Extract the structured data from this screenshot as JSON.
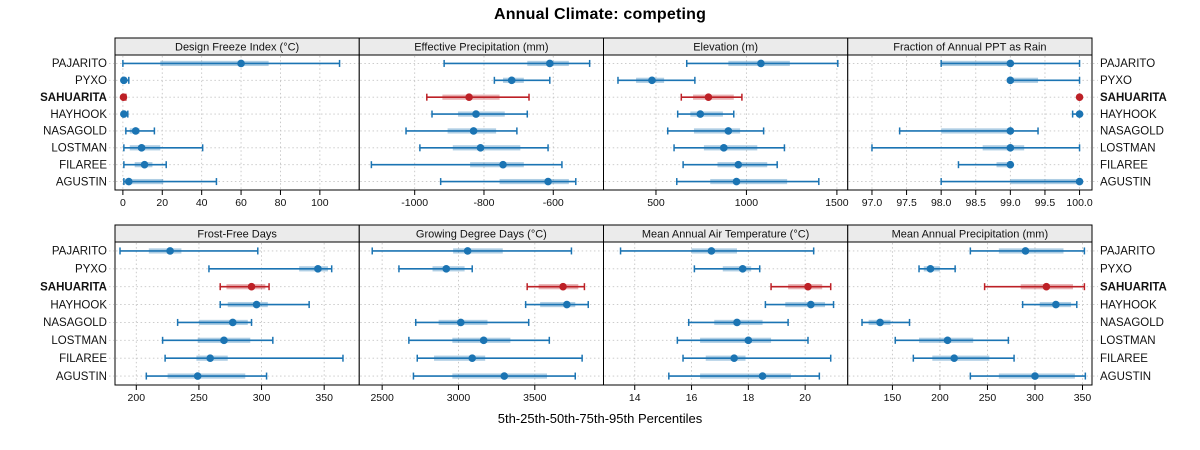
{
  "title": "Annual Climate: competing",
  "caption": "5th-25th-50th-75th-95th Percentiles",
  "sites": [
    "PAJARITO",
    "PYXO",
    "SAHUARITA",
    "HAYHOOK",
    "NASAGOLD",
    "LOSTMAN",
    "FILAREE",
    "AGUSTIN"
  ],
  "highlight_site": "SAHUARITA",
  "percentile_keys": [
    "p5",
    "p25",
    "p50",
    "p75",
    "p95"
  ],
  "colors": {
    "site_blue": "#1b74b3",
    "highlight_red": "#bd2026",
    "strip_bg": "#ebebeb",
    "panel_border": "#000000",
    "grid": "#c5c5c5",
    "background": "#ffffff"
  },
  "layout_hints": {
    "grid_style": "dotted",
    "rows": 2,
    "cols": 4,
    "marks": "whisker p5-p95 with end caps, translucent band p25-p75, solid dot p50"
  },
  "chart_data": [
    {
      "type": "scatter",
      "mark": "percentile-interval",
      "title": "Design Freeze Index (°C)",
      "xlim": [
        -4,
        120
      ],
      "ticks": [
        0,
        20,
        40,
        60,
        80,
        100
      ],
      "tick_labels": [
        "0",
        "20",
        "40",
        "60",
        "80",
        "100"
      ],
      "series": [
        {
          "site": "PAJARITO",
          "values": [
            0,
            19,
            60,
            74,
            110
          ]
        },
        {
          "site": "PYXO",
          "values": [
            0,
            0,
            0.5,
            1.5,
            3
          ]
        },
        {
          "site": "SAHUARITA",
          "values": [
            0,
            0,
            0.3,
            0.8,
            1.5
          ]
        },
        {
          "site": "HAYHOOK",
          "values": [
            0,
            0,
            0.5,
            1.5,
            2.5
          ]
        },
        {
          "site": "NASAGOLD",
          "values": [
            1.5,
            3.5,
            6.5,
            8.5,
            16
          ]
        },
        {
          "site": "LOSTMAN",
          "values": [
            0.5,
            3.5,
            9.5,
            19,
            40.5
          ]
        },
        {
          "site": "FILAREE",
          "values": [
            0.5,
            6,
            11,
            15,
            22
          ]
        },
        {
          "site": "AGUSTIN",
          "values": [
            0.5,
            1,
            3,
            20.5,
            47.5
          ]
        }
      ]
    },
    {
      "type": "scatter",
      "mark": "percentile-interval",
      "title": "Effective Precipitation (mm)",
      "xlim": [
        -1160,
        -455
      ],
      "ticks": [
        -1000,
        -800,
        -600
      ],
      "tick_labels": [
        "-1000",
        "-800",
        "-600"
      ],
      "series": [
        {
          "site": "PAJARITO",
          "values": [
            -915,
            -675,
            -610,
            -555,
            -495
          ]
        },
        {
          "site": "PYXO",
          "values": [
            -770,
            -745,
            -720,
            -685,
            -610
          ]
        },
        {
          "site": "SAHUARITA",
          "values": [
            -965,
            -920,
            -843,
            -755,
            -670
          ]
        },
        {
          "site": "HAYHOOK",
          "values": [
            -950,
            -875,
            -823,
            -740,
            -675
          ]
        },
        {
          "site": "NASAGOLD",
          "values": [
            -1025,
            -905,
            -830,
            -765,
            -705
          ]
        },
        {
          "site": "LOSTMAN",
          "values": [
            -985,
            -890,
            -810,
            -695,
            -615
          ]
        },
        {
          "site": "FILAREE",
          "values": [
            -1125,
            -840,
            -745,
            -685,
            -575
          ]
        },
        {
          "site": "AGUSTIN",
          "values": [
            -925,
            -755,
            -615,
            -555,
            -535
          ]
        }
      ]
    },
    {
      "type": "scatter",
      "mark": "percentile-interval",
      "title": "Elevation (m)",
      "xlim": [
        210,
        1560
      ],
      "ticks": [
        500,
        1000,
        1500
      ],
      "tick_labels": [
        "500",
        "1000",
        "1500"
      ],
      "series": [
        {
          "site": "PAJARITO",
          "values": [
            670,
            900,
            1080,
            1240,
            1505
          ]
        },
        {
          "site": "PYXO",
          "values": [
            290,
            390,
            478,
            545,
            715
          ]
        },
        {
          "site": "SAHUARITA",
          "values": [
            640,
            705,
            790,
            930,
            975
          ]
        },
        {
          "site": "HAYHOOK",
          "values": [
            620,
            690,
            745,
            870,
            930
          ]
        },
        {
          "site": "NASAGOLD",
          "values": [
            565,
            710,
            900,
            965,
            1095
          ]
        },
        {
          "site": "LOSTMAN",
          "values": [
            600,
            765,
            875,
            1060,
            1210
          ]
        },
        {
          "site": "FILAREE",
          "values": [
            650,
            840,
            955,
            1115,
            1170
          ]
        },
        {
          "site": "AGUSTIN",
          "values": [
            615,
            800,
            945,
            1225,
            1400
          ]
        }
      ]
    },
    {
      "type": "scatter",
      "mark": "percentile-interval",
      "title": "Fraction of Annual PPT as Rain",
      "xlim": [
        96.65,
        100.18
      ],
      "ticks": [
        97.0,
        97.5,
        98.0,
        98.5,
        99.0,
        99.5,
        100.0
      ],
      "tick_labels": [
        "97.0",
        "97.5",
        "98.0",
        "98.5",
        "99.0",
        "99.5",
        "100.0"
      ],
      "series": [
        {
          "site": "PAJARITO",
          "values": [
            98.0,
            98.0,
            99.0,
            99.0,
            100.0
          ]
        },
        {
          "site": "PYXO",
          "values": [
            99.0,
            99.0,
            99.0,
            99.4,
            100.0
          ]
        },
        {
          "site": "SAHUARITA",
          "values": [
            100,
            100,
            100,
            100,
            100
          ]
        },
        {
          "site": "HAYHOOK",
          "values": [
            99.9,
            100,
            100,
            100,
            100
          ]
        },
        {
          "site": "NASAGOLD",
          "values": [
            97.4,
            98.0,
            99.0,
            99.0,
            99.4
          ]
        },
        {
          "site": "LOSTMAN",
          "values": [
            97.0,
            98.6,
            99.0,
            99.2,
            100.0
          ]
        },
        {
          "site": "FILAREE",
          "values": [
            98.25,
            98.8,
            99.0,
            99.0,
            99.0
          ]
        },
        {
          "site": "AGUSTIN",
          "values": [
            98.0,
            99.0,
            100.0,
            100.0,
            100.0
          ]
        }
      ]
    },
    {
      "type": "scatter",
      "mark": "percentile-interval",
      "title": "Frost-Free Days",
      "xlim": [
        183,
        378
      ],
      "ticks": [
        200,
        250,
        300,
        350
      ],
      "tick_labels": [
        "200",
        "250",
        "300",
        "350"
      ],
      "series": [
        {
          "site": "PAJARITO",
          "values": [
            187,
            210,
            227,
            236,
            297
          ]
        },
        {
          "site": "PYXO",
          "values": [
            258,
            330,
            345,
            353,
            356
          ]
        },
        {
          "site": "SAHUARITA",
          "values": [
            267,
            272,
            292,
            303,
            306
          ]
        },
        {
          "site": "HAYHOOK",
          "values": [
            267,
            273,
            296,
            305,
            338
          ]
        },
        {
          "site": "NASAGOLD",
          "values": [
            233,
            250,
            277,
            289,
            292
          ]
        },
        {
          "site": "LOSTMAN",
          "values": [
            221,
            249,
            270,
            291,
            309
          ]
        },
        {
          "site": "FILAREE",
          "values": [
            223,
            248,
            259,
            273,
            365
          ]
        },
        {
          "site": "AGUSTIN",
          "values": [
            208,
            225,
            249,
            287,
            304
          ]
        }
      ]
    },
    {
      "type": "scatter",
      "mark": "percentile-interval",
      "title": "Growing Degree Days (°C)",
      "xlim": [
        2350,
        3950
      ],
      "ticks": [
        2500,
        3000,
        3500
      ],
      "tick_labels": [
        "2500",
        "3000",
        "3500"
      ],
      "series": [
        {
          "site": "PAJARITO",
          "values": [
            2435,
            2965,
            3060,
            3290,
            3740
          ]
        },
        {
          "site": "PYXO",
          "values": [
            2610,
            2830,
            2920,
            3040,
            3090
          ]
        },
        {
          "site": "SAHUARITA",
          "values": [
            3450,
            3525,
            3685,
            3785,
            3825
          ]
        },
        {
          "site": "HAYHOOK",
          "values": [
            3440,
            3535,
            3710,
            3765,
            3850
          ]
        },
        {
          "site": "NASAGOLD",
          "values": [
            2720,
            2870,
            3015,
            3190,
            3460
          ]
        },
        {
          "site": "LOSTMAN",
          "values": [
            2675,
            2960,
            3165,
            3340,
            3595
          ]
        },
        {
          "site": "FILAREE",
          "values": [
            2730,
            2840,
            3090,
            3175,
            3810
          ]
        },
        {
          "site": "AGUSTIN",
          "values": [
            2705,
            2960,
            3300,
            3580,
            3765
          ]
        }
      ]
    },
    {
      "type": "scatter",
      "mark": "percentile-interval",
      "title": "Mean Annual Air Temperature (°C)",
      "xlim": [
        12.9,
        21.5
      ],
      "ticks": [
        14,
        16,
        18,
        20
      ],
      "tick_labels": [
        "14",
        "16",
        "18",
        "20"
      ],
      "series": [
        {
          "site": "PAJARITO",
          "values": [
            13.5,
            16.0,
            16.7,
            17.6,
            20.3
          ]
        },
        {
          "site": "PYXO",
          "values": [
            16.1,
            17.1,
            17.8,
            18.1,
            18.4
          ]
        },
        {
          "site": "SAHUARITA",
          "values": [
            18.8,
            19.4,
            20.1,
            20.6,
            20.9
          ]
        },
        {
          "site": "HAYHOOK",
          "values": [
            18.6,
            19.3,
            20.2,
            20.7,
            21.0
          ]
        },
        {
          "site": "NASAGOLD",
          "values": [
            15.9,
            16.8,
            17.6,
            18.5,
            19.4
          ]
        },
        {
          "site": "LOSTMAN",
          "values": [
            15.5,
            16.3,
            18.0,
            18.8,
            20.1
          ]
        },
        {
          "site": "FILAREE",
          "values": [
            15.7,
            16.5,
            17.5,
            17.9,
            20.9
          ]
        },
        {
          "site": "AGUSTIN",
          "values": [
            15.2,
            16.3,
            18.5,
            19.5,
            20.5
          ]
        }
      ]
    },
    {
      "type": "scatter",
      "mark": "percentile-interval",
      "title": "Mean Annual Precipitation (mm)",
      "xlim": [
        103,
        360
      ],
      "ticks": [
        150,
        200,
        250,
        300,
        350
      ],
      "tick_labels": [
        "150",
        "200",
        "250",
        "300",
        "350"
      ],
      "series": [
        {
          "site": "PAJARITO",
          "values": [
            232,
            262,
            290,
            330,
            352
          ]
        },
        {
          "site": "PYXO",
          "values": [
            178,
            183,
            190,
            200,
            216
          ]
        },
        {
          "site": "SAHUARITA",
          "values": [
            247,
            285,
            312,
            340,
            352
          ]
        },
        {
          "site": "HAYHOOK",
          "values": [
            287,
            305,
            322,
            338,
            344
          ]
        },
        {
          "site": "NASAGOLD",
          "values": [
            118,
            125,
            137,
            148,
            168
          ]
        },
        {
          "site": "LOSTMAN",
          "values": [
            153,
            178,
            208,
            235,
            272
          ]
        },
        {
          "site": "FILAREE",
          "values": [
            172,
            192,
            215,
            252,
            278
          ]
        },
        {
          "site": "AGUSTIN",
          "values": [
            232,
            262,
            300,
            342,
            353
          ]
        }
      ]
    }
  ]
}
